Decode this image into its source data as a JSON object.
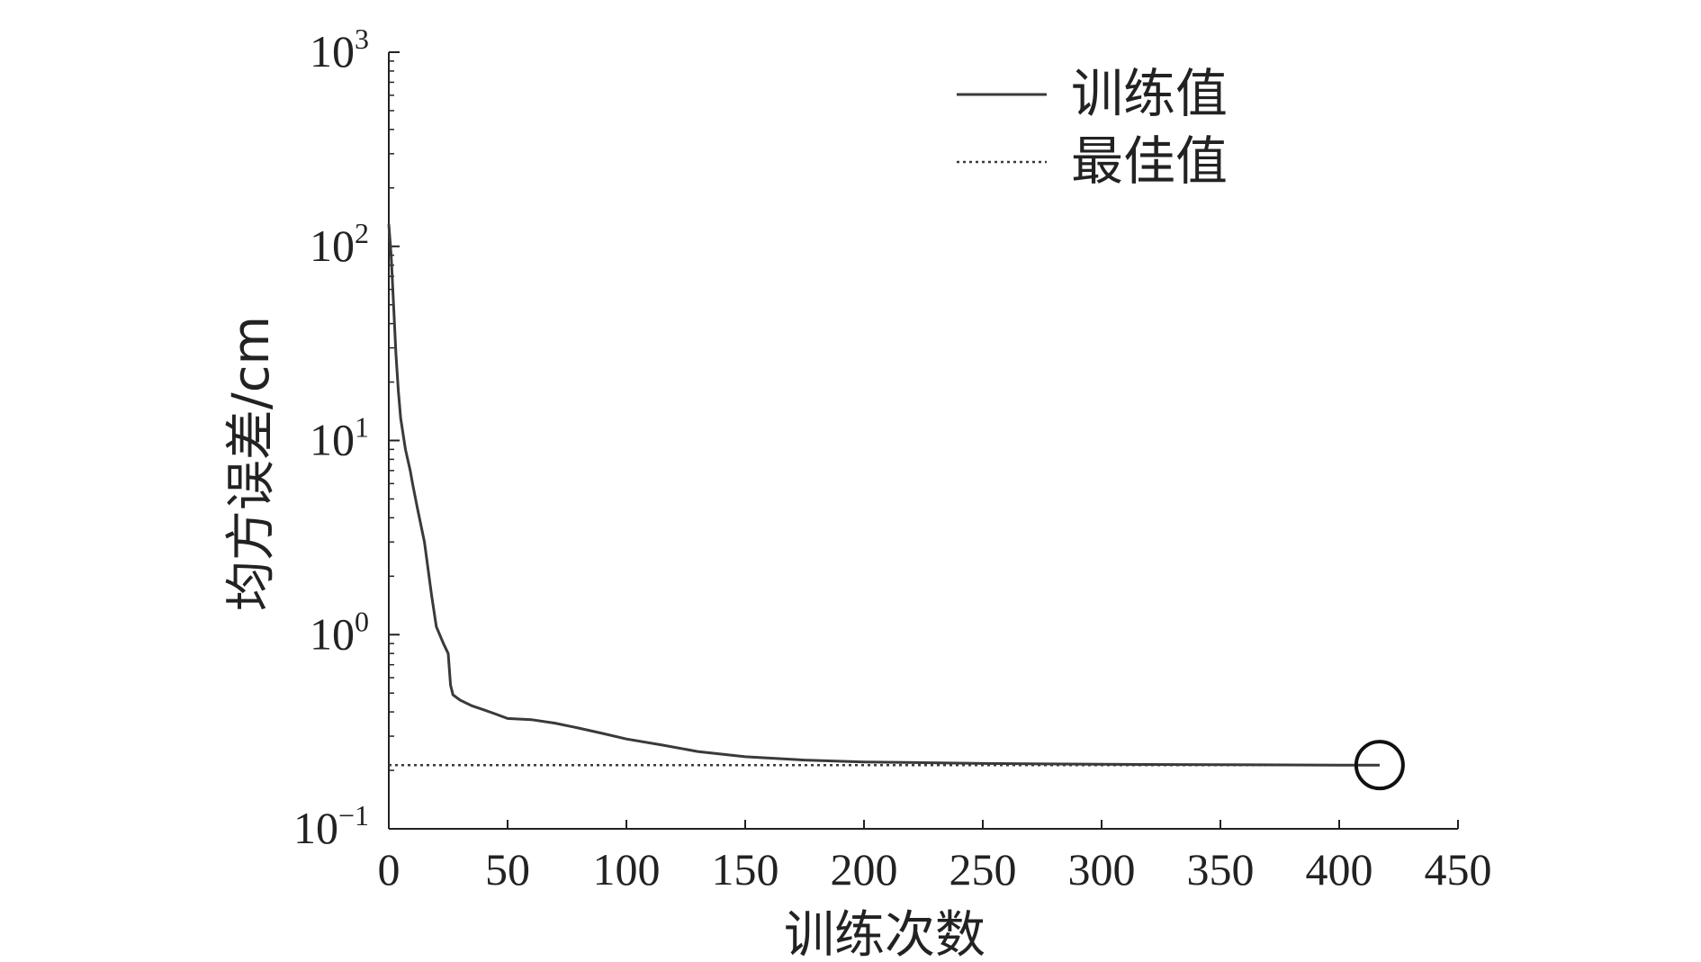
{
  "chart_data": {
    "type": "line",
    "xlabel": "训练次数",
    "ylabel": "均方误差/cm",
    "xlim": [
      0,
      450
    ],
    "ylim": [
      0.1,
      1000
    ],
    "yscale": "log",
    "x_ticks": [
      "0",
      "50",
      "100",
      "150",
      "200",
      "250",
      "300",
      "350",
      "400",
      "450"
    ],
    "y_ticks": [
      {
        "base": "10",
        "exp": "3",
        "value": 1000
      },
      {
        "base": "10",
        "exp": "2",
        "value": 100
      },
      {
        "base": "10",
        "exp": "1",
        "value": 10
      },
      {
        "base": "10",
        "exp": "0",
        "value": 1
      },
      {
        "base": "10",
        "exp": "−1",
        "value": 0.1
      }
    ],
    "legend": {
      "position": "top-right",
      "entries": [
        "训练值",
        "最佳值"
      ]
    },
    "series": [
      {
        "name": "训练值",
        "style": "solid",
        "x": [
          0,
          1,
          2,
          3,
          4,
          5,
          7,
          9,
          10,
          12,
          15,
          18,
          20,
          23,
          25,
          26,
          27,
          30,
          35,
          40,
          45,
          50,
          60,
          70,
          80,
          90,
          100,
          115,
          130,
          150,
          175,
          200,
          250,
          300,
          350,
          400,
          417
        ],
        "y": [
          130,
          90,
          50,
          28,
          18,
          13,
          9,
          7,
          6,
          4.5,
          3,
          1.6,
          1.1,
          0.9,
          0.8,
          0.55,
          0.49,
          0.46,
          0.43,
          0.41,
          0.39,
          0.37,
          0.365,
          0.35,
          0.33,
          0.31,
          0.29,
          0.27,
          0.25,
          0.235,
          0.226,
          0.221,
          0.217,
          0.215,
          0.214,
          0.213,
          0.213
        ]
      },
      {
        "name": "最佳值",
        "style": "dotted",
        "x": [
          0,
          417
        ],
        "y": [
          0.213,
          0.213
        ]
      }
    ],
    "best_marker": {
      "x": 417,
      "y": 0.213
    },
    "colors": {
      "line": "#3a3a3a",
      "axis": "#222222"
    }
  }
}
